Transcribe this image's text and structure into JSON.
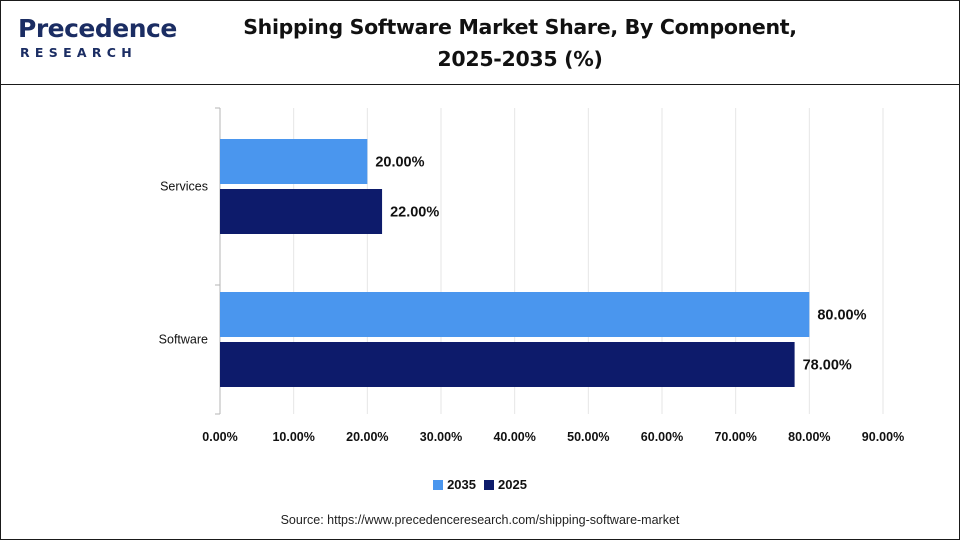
{
  "brand": {
    "logo_top": "Precedence",
    "logo_bottom": "RESEARCH",
    "color": "#1b2d63"
  },
  "chart_data": {
    "type": "bar",
    "orientation": "horizontal",
    "title_line1": "Shipping Software Market Share, By Component,",
    "title_line2": "2025-2035 (%)",
    "categories": [
      "Services",
      "Software"
    ],
    "series": [
      {
        "name": "2035",
        "values": [
          20,
          80
        ],
        "labels": [
          "20.00%",
          "80.00%"
        ],
        "color": "#4a96ee"
      },
      {
        "name": "2025",
        "values": [
          22,
          78
        ],
        "labels": [
          "22.00%",
          "78.00%"
        ],
        "color": "#0d1b6b"
      }
    ],
    "xlim": [
      0,
      90
    ],
    "xticks": [
      0,
      10,
      20,
      30,
      40,
      50,
      60,
      70,
      80,
      90
    ],
    "xtick_labels": [
      "0.00%",
      "10.00%",
      "20.00%",
      "30.00%",
      "40.00%",
      "50.00%",
      "60.00%",
      "70.00%",
      "80.00%",
      "90.00%"
    ],
    "grid": true,
    "legend_position": "bottom-center"
  },
  "source": "Source: https://www.precedenceresearch.com/shipping-software-market"
}
